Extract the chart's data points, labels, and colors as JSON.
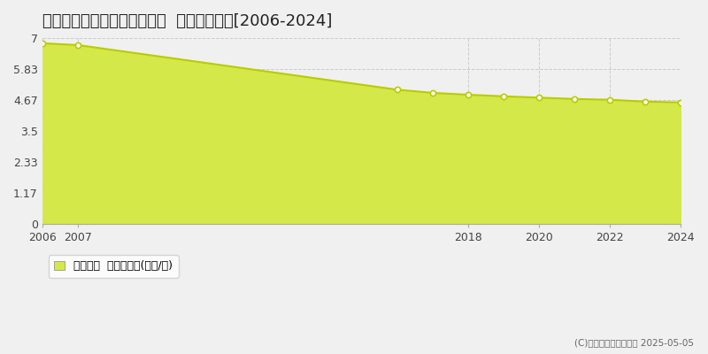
{
  "title": "日高郡新ひだか町静内末広町  基準地価推移[2006-2024]",
  "years": [
    2006,
    2007,
    2016,
    2017,
    2018,
    2019,
    2020,
    2021,
    2022,
    2023,
    2024
  ],
  "values": [
    6.8,
    6.73,
    5.05,
    4.93,
    4.86,
    4.8,
    4.75,
    4.7,
    4.67,
    4.6,
    4.57
  ],
  "ylim": [
    0,
    7
  ],
  "yticks": [
    0,
    1.17,
    2.33,
    3.5,
    4.67,
    5.83,
    7
  ],
  "ytick_labels": [
    "0",
    "1.17",
    "2.33",
    "3.5",
    "4.67",
    "5.83",
    "7"
  ],
  "xticks": [
    2006,
    2007,
    2018,
    2020,
    2022,
    2024
  ],
  "line_color": "#b8cc00",
  "fill_color": "#d4e84a",
  "marker_facecolor": "white",
  "marker_edgecolor": "#b8cc00",
  "bg_color": "#f0f0f0",
  "plot_bg_color": "#f0f0f0",
  "grid_color": "#cccccc",
  "legend_label": "基準地価  平均坪単価(万円/坪)",
  "copyright": "(C)土地価格ドットコム 2025-05-05",
  "title_fontsize": 13,
  "tick_fontsize": 9,
  "legend_fontsize": 9
}
